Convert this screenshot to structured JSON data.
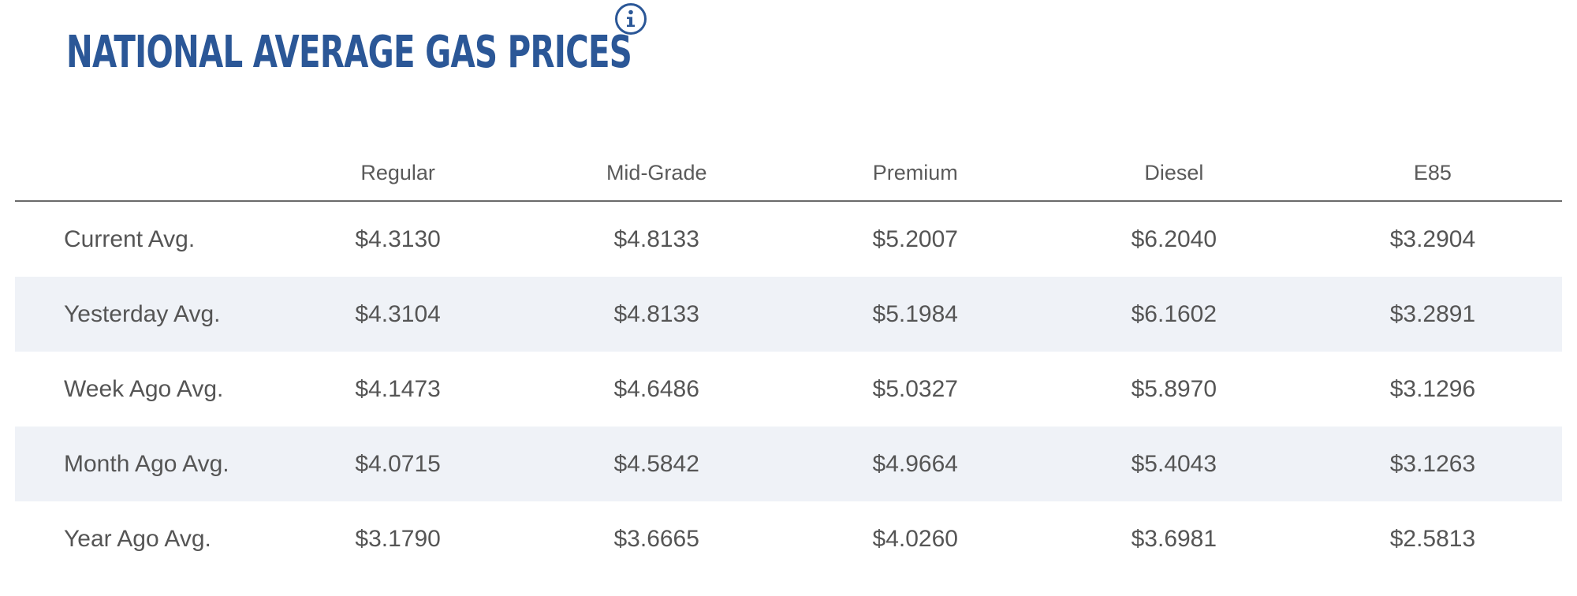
{
  "header": {
    "title": "NATIONAL AVERAGE GAS PRICES",
    "info_icon": "info-circle-icon",
    "title_color": "#2b5797"
  },
  "table": {
    "columns": [
      "",
      "Regular",
      "Mid-Grade",
      "Premium",
      "Diesel",
      "E85"
    ],
    "rows": [
      {
        "label": "Current Avg.",
        "values": [
          "$4.3130",
          "$4.8133",
          "$5.2007",
          "$6.2040",
          "$3.2904"
        ]
      },
      {
        "label": "Yesterday Avg.",
        "values": [
          "$4.3104",
          "$4.8133",
          "$5.1984",
          "$6.1602",
          "$3.2891"
        ]
      },
      {
        "label": "Week Ago Avg.",
        "values": [
          "$4.1473",
          "$4.6486",
          "$5.0327",
          "$5.8970",
          "$3.1296"
        ]
      },
      {
        "label": "Month Ago Avg.",
        "values": [
          "$4.0715",
          "$4.5842",
          "$4.9664",
          "$5.4043",
          "$3.1263"
        ]
      },
      {
        "label": "Year Ago Avg.",
        "values": [
          "$3.1790",
          "$3.6665",
          "$4.0260",
          "$3.6981",
          "$2.5813"
        ]
      }
    ],
    "stripe_color": "#eff2f7"
  }
}
